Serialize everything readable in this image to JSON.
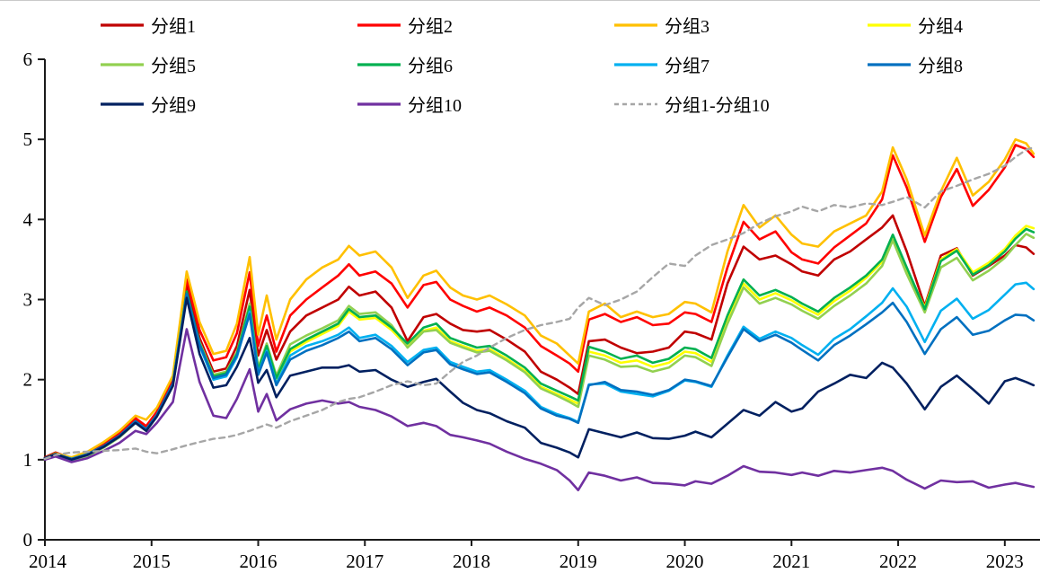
{
  "figure": {
    "background": "#ffffff",
    "border_top_color": "#c9c9c9",
    "axis_color": "#1a1a1a"
  },
  "axes": {
    "x_tick_labels": [
      "2014",
      "2015",
      "2016",
      "2017",
      "2018",
      "2019",
      "2020",
      "2021",
      "2022",
      "2023"
    ],
    "y_tick_labels": [
      "0",
      "1",
      "2",
      "3",
      "4",
      "5",
      "6"
    ]
  },
  "chart_data": {
    "type": "line",
    "title": "",
    "xlabel": "",
    "ylabel": "",
    "grid": false,
    "legend_position": "top",
    "x_axis": {
      "min": 2014,
      "max": 2023.33,
      "ticks": [
        2014,
        2015,
        2016,
        2017,
        2018,
        2019,
        2020,
        2021,
        2022,
        2023
      ]
    },
    "y_axis": {
      "min": 0,
      "max": 6,
      "ticks": [
        0,
        1,
        2,
        3,
        4,
        5,
        6
      ]
    },
    "x": [
      2014.0,
      2014.1,
      2014.25,
      2014.4,
      2014.55,
      2014.7,
      2014.85,
      2014.95,
      2015.05,
      2015.2,
      2015.33,
      2015.45,
      2015.58,
      2015.7,
      2015.8,
      2015.92,
      2016.0,
      2016.08,
      2016.17,
      2016.3,
      2016.45,
      2016.6,
      2016.75,
      2016.85,
      2016.95,
      2017.1,
      2017.25,
      2017.4,
      2017.55,
      2017.67,
      2017.8,
      2017.92,
      2018.05,
      2018.17,
      2018.33,
      2018.5,
      2018.65,
      2018.8,
      2018.92,
      2019.0,
      2019.1,
      2019.25,
      2019.4,
      2019.55,
      2019.7,
      2019.85,
      2020.0,
      2020.1,
      2020.25,
      2020.4,
      2020.55,
      2020.7,
      2020.85,
      2021.0,
      2021.1,
      2021.25,
      2021.4,
      2021.55,
      2021.7,
      2021.85,
      2021.95,
      2022.08,
      2022.25,
      2022.4,
      2022.55,
      2022.7,
      2022.85,
      2023.0,
      2023.1,
      2023.2,
      2023.27
    ],
    "series": [
      {
        "name": "分组1",
        "key": "group1",
        "color": "#C00000",
        "dashed": false,
        "values": [
          1.03,
          1.09,
          1.02,
          1.08,
          1.18,
          1.32,
          1.5,
          1.4,
          1.58,
          1.98,
          3.2,
          2.52,
          2.1,
          2.14,
          2.42,
          3.12,
          2.3,
          2.62,
          2.25,
          2.6,
          2.8,
          2.9,
          3.0,
          3.16,
          3.05,
          3.1,
          2.9,
          2.48,
          2.78,
          2.82,
          2.7,
          2.62,
          2.6,
          2.62,
          2.5,
          2.35,
          2.1,
          2.0,
          1.9,
          1.82,
          2.48,
          2.5,
          2.4,
          2.33,
          2.35,
          2.4,
          2.6,
          2.58,
          2.5,
          3.2,
          3.66,
          3.5,
          3.55,
          3.44,
          3.35,
          3.3,
          3.5,
          3.6,
          3.75,
          3.9,
          4.05,
          3.6,
          2.92,
          3.55,
          3.64,
          3.3,
          3.42,
          3.55,
          3.68,
          3.65,
          3.57
        ]
      },
      {
        "name": "分组2",
        "key": "group2",
        "color": "#FF0000",
        "dashed": false,
        "values": [
          1.02,
          1.08,
          1.02,
          1.09,
          1.2,
          1.33,
          1.52,
          1.42,
          1.6,
          2.0,
          3.25,
          2.62,
          2.24,
          2.28,
          2.58,
          3.34,
          2.42,
          2.8,
          2.35,
          2.8,
          3.0,
          3.15,
          3.3,
          3.44,
          3.3,
          3.35,
          3.2,
          2.9,
          3.18,
          3.22,
          3.0,
          2.92,
          2.85,
          2.9,
          2.8,
          2.65,
          2.42,
          2.3,
          2.2,
          2.1,
          2.75,
          2.82,
          2.72,
          2.78,
          2.68,
          2.7,
          2.84,
          2.82,
          2.72,
          3.4,
          3.97,
          3.75,
          3.85,
          3.59,
          3.5,
          3.45,
          3.65,
          3.8,
          3.95,
          4.25,
          4.8,
          4.4,
          3.72,
          4.28,
          4.63,
          4.17,
          4.37,
          4.65,
          4.93,
          4.88,
          4.78
        ]
      },
      {
        "name": "分组3",
        "key": "group3",
        "color": "#FFC000",
        "dashed": false,
        "values": [
          1.02,
          1.08,
          1.03,
          1.1,
          1.22,
          1.36,
          1.55,
          1.5,
          1.65,
          2.05,
          3.35,
          2.72,
          2.32,
          2.36,
          2.7,
          3.53,
          2.56,
          3.05,
          2.5,
          3.0,
          3.25,
          3.4,
          3.5,
          3.67,
          3.55,
          3.6,
          3.4,
          3.02,
          3.3,
          3.36,
          3.15,
          3.05,
          3.0,
          3.05,
          2.94,
          2.8,
          2.55,
          2.45,
          2.3,
          2.2,
          2.85,
          2.95,
          2.78,
          2.85,
          2.78,
          2.82,
          2.97,
          2.95,
          2.84,
          3.6,
          4.18,
          3.9,
          4.05,
          3.81,
          3.7,
          3.66,
          3.85,
          3.95,
          4.05,
          4.35,
          4.9,
          4.5,
          3.8,
          4.35,
          4.77,
          4.3,
          4.47,
          4.75,
          5.0,
          4.95,
          4.82
        ]
      },
      {
        "name": "分组4",
        "key": "group4",
        "color": "#FFFF00",
        "dashed": false,
        "values": [
          1.01,
          1.06,
          1.0,
          1.06,
          1.16,
          1.29,
          1.47,
          1.37,
          1.55,
          1.93,
          3.08,
          2.43,
          2.02,
          2.06,
          2.3,
          2.88,
          2.1,
          2.4,
          2.0,
          2.35,
          2.47,
          2.57,
          2.67,
          2.85,
          2.75,
          2.77,
          2.62,
          2.41,
          2.61,
          2.65,
          2.48,
          2.42,
          2.36,
          2.38,
          2.26,
          2.11,
          1.91,
          1.82,
          1.75,
          1.7,
          2.35,
          2.3,
          2.21,
          2.24,
          2.16,
          2.21,
          2.35,
          2.33,
          2.22,
          2.76,
          3.2,
          3.0,
          3.08,
          2.99,
          2.91,
          2.81,
          2.98,
          3.11,
          3.27,
          3.47,
          3.78,
          3.38,
          2.9,
          3.5,
          3.63,
          3.34,
          3.46,
          3.63,
          3.8,
          3.92,
          3.89
        ]
      },
      {
        "name": "分组5",
        "key": "group5",
        "color": "#92D050",
        "dashed": false,
        "values": [
          1.0,
          1.05,
          0.99,
          1.05,
          1.15,
          1.28,
          1.46,
          1.36,
          1.54,
          1.92,
          3.06,
          2.47,
          2.06,
          2.1,
          2.34,
          2.95,
          2.15,
          2.45,
          2.05,
          2.44,
          2.55,
          2.64,
          2.74,
          2.92,
          2.82,
          2.84,
          2.68,
          2.4,
          2.6,
          2.62,
          2.46,
          2.4,
          2.34,
          2.36,
          2.24,
          2.09,
          1.89,
          1.8,
          1.72,
          1.66,
          2.3,
          2.25,
          2.16,
          2.17,
          2.1,
          2.15,
          2.3,
          2.28,
          2.17,
          2.7,
          3.15,
          2.95,
          3.02,
          2.94,
          2.86,
          2.76,
          2.92,
          3.05,
          3.2,
          3.42,
          3.74,
          3.32,
          2.84,
          3.4,
          3.52,
          3.24,
          3.36,
          3.52,
          3.68,
          3.82,
          3.77
        ]
      },
      {
        "name": "分组6",
        "key": "group6",
        "color": "#00B050",
        "dashed": false,
        "values": [
          1.02,
          1.07,
          1.01,
          1.07,
          1.17,
          1.3,
          1.48,
          1.38,
          1.56,
          1.95,
          3.1,
          2.45,
          2.04,
          2.08,
          2.32,
          2.91,
          2.12,
          2.42,
          2.02,
          2.38,
          2.5,
          2.6,
          2.7,
          2.88,
          2.78,
          2.8,
          2.65,
          2.45,
          2.65,
          2.7,
          2.52,
          2.46,
          2.4,
          2.42,
          2.3,
          2.15,
          1.95,
          1.86,
          1.79,
          1.74,
          2.41,
          2.35,
          2.26,
          2.3,
          2.21,
          2.26,
          2.4,
          2.38,
          2.27,
          2.8,
          3.25,
          3.05,
          3.12,
          3.03,
          2.95,
          2.85,
          3.02,
          3.15,
          3.3,
          3.5,
          3.81,
          3.4,
          2.88,
          3.48,
          3.61,
          3.31,
          3.43,
          3.6,
          3.76,
          3.88,
          3.84
        ]
      },
      {
        "name": "分组7",
        "key": "group7",
        "color": "#00B0F0",
        "dashed": false,
        "values": [
          1.01,
          1.06,
          1.0,
          1.06,
          1.16,
          1.29,
          1.47,
          1.37,
          1.55,
          1.94,
          3.05,
          2.42,
          2.0,
          2.04,
          2.28,
          2.85,
          2.08,
          2.36,
          1.95,
          2.3,
          2.42,
          2.48,
          2.56,
          2.65,
          2.52,
          2.56,
          2.42,
          2.22,
          2.37,
          2.4,
          2.22,
          2.16,
          2.1,
          2.12,
          2.0,
          1.86,
          1.66,
          1.57,
          1.52,
          1.47,
          1.94,
          1.95,
          1.85,
          1.82,
          1.79,
          1.86,
          1.99,
          1.97,
          1.91,
          2.3,
          2.66,
          2.51,
          2.6,
          2.52,
          2.43,
          2.31,
          2.51,
          2.63,
          2.79,
          2.96,
          3.14,
          2.91,
          2.47,
          2.86,
          3.01,
          2.76,
          2.87,
          3.06,
          3.19,
          3.21,
          3.13
        ]
      },
      {
        "name": "分组8",
        "key": "group8",
        "color": "#0070C0",
        "dashed": false,
        "values": [
          1.02,
          1.07,
          1.01,
          1.07,
          1.17,
          1.3,
          1.48,
          1.38,
          1.56,
          1.95,
          3.07,
          2.44,
          2.02,
          2.06,
          2.3,
          2.82,
          2.06,
          2.34,
          1.93,
          2.25,
          2.36,
          2.43,
          2.52,
          2.6,
          2.48,
          2.52,
          2.38,
          2.18,
          2.34,
          2.37,
          2.19,
          2.13,
          2.07,
          2.09,
          1.97,
          1.83,
          1.64,
          1.55,
          1.51,
          1.46,
          1.93,
          1.97,
          1.87,
          1.85,
          1.81,
          1.87,
          2.0,
          1.98,
          1.92,
          2.28,
          2.63,
          2.48,
          2.56,
          2.46,
          2.37,
          2.24,
          2.43,
          2.55,
          2.69,
          2.84,
          2.96,
          2.72,
          2.32,
          2.63,
          2.78,
          2.56,
          2.61,
          2.74,
          2.81,
          2.8,
          2.74
        ]
      },
      {
        "name": "分组9",
        "key": "group9",
        "color": "#002060",
        "dashed": false,
        "values": [
          1.02,
          1.07,
          1.0,
          1.06,
          1.16,
          1.29,
          1.46,
          1.36,
          1.54,
          1.92,
          3.02,
          2.32,
          1.9,
          1.93,
          2.16,
          2.52,
          1.96,
          2.12,
          1.78,
          2.05,
          2.1,
          2.15,
          2.15,
          2.18,
          2.1,
          2.12,
          2.0,
          1.91,
          1.97,
          2.01,
          1.85,
          1.71,
          1.62,
          1.58,
          1.48,
          1.4,
          1.21,
          1.15,
          1.09,
          1.03,
          1.38,
          1.33,
          1.28,
          1.34,
          1.27,
          1.26,
          1.3,
          1.35,
          1.28,
          1.45,
          1.62,
          1.55,
          1.72,
          1.6,
          1.64,
          1.85,
          1.95,
          2.06,
          2.02,
          2.21,
          2.15,
          1.95,
          1.63,
          1.91,
          2.05,
          1.88,
          1.7,
          1.98,
          2.02,
          1.97,
          1.93
        ]
      },
      {
        "name": "分组10",
        "key": "group10",
        "color": "#7030A0",
        "dashed": false,
        "values": [
          1.0,
          1.04,
          0.97,
          1.02,
          1.11,
          1.21,
          1.36,
          1.32,
          1.46,
          1.72,
          2.63,
          1.97,
          1.55,
          1.52,
          1.76,
          2.13,
          1.6,
          1.82,
          1.49,
          1.63,
          1.7,
          1.74,
          1.7,
          1.72,
          1.66,
          1.62,
          1.54,
          1.42,
          1.46,
          1.42,
          1.31,
          1.28,
          1.24,
          1.2,
          1.1,
          1.01,
          0.95,
          0.87,
          0.74,
          0.62,
          0.84,
          0.8,
          0.74,
          0.78,
          0.71,
          0.7,
          0.68,
          0.73,
          0.7,
          0.8,
          0.92,
          0.85,
          0.84,
          0.81,
          0.84,
          0.8,
          0.86,
          0.84,
          0.87,
          0.9,
          0.86,
          0.75,
          0.64,
          0.74,
          0.72,
          0.73,
          0.65,
          0.69,
          0.71,
          0.68,
          0.66
        ]
      },
      {
        "name": "分组1-分组10",
        "key": "group1-minus-group10",
        "color": "#A6A6A6",
        "dashed": true,
        "values": [
          1.01,
          1.06,
          1.09,
          1.1,
          1.11,
          1.12,
          1.14,
          1.1,
          1.08,
          1.13,
          1.18,
          1.22,
          1.26,
          1.28,
          1.31,
          1.36,
          1.4,
          1.44,
          1.4,
          1.48,
          1.55,
          1.62,
          1.72,
          1.76,
          1.78,
          1.85,
          1.93,
          1.98,
          1.93,
          1.95,
          2.1,
          2.22,
          2.3,
          2.4,
          2.52,
          2.62,
          2.68,
          2.72,
          2.76,
          2.9,
          3.02,
          2.93,
          3.0,
          3.1,
          3.28,
          3.45,
          3.42,
          3.55,
          3.68,
          3.75,
          3.83,
          3.95,
          4.04,
          4.1,
          4.16,
          4.1,
          4.18,
          4.15,
          4.2,
          4.18,
          4.22,
          4.28,
          4.15,
          4.35,
          4.42,
          4.5,
          4.57,
          4.67,
          4.78,
          4.87,
          4.9
        ]
      }
    ]
  }
}
